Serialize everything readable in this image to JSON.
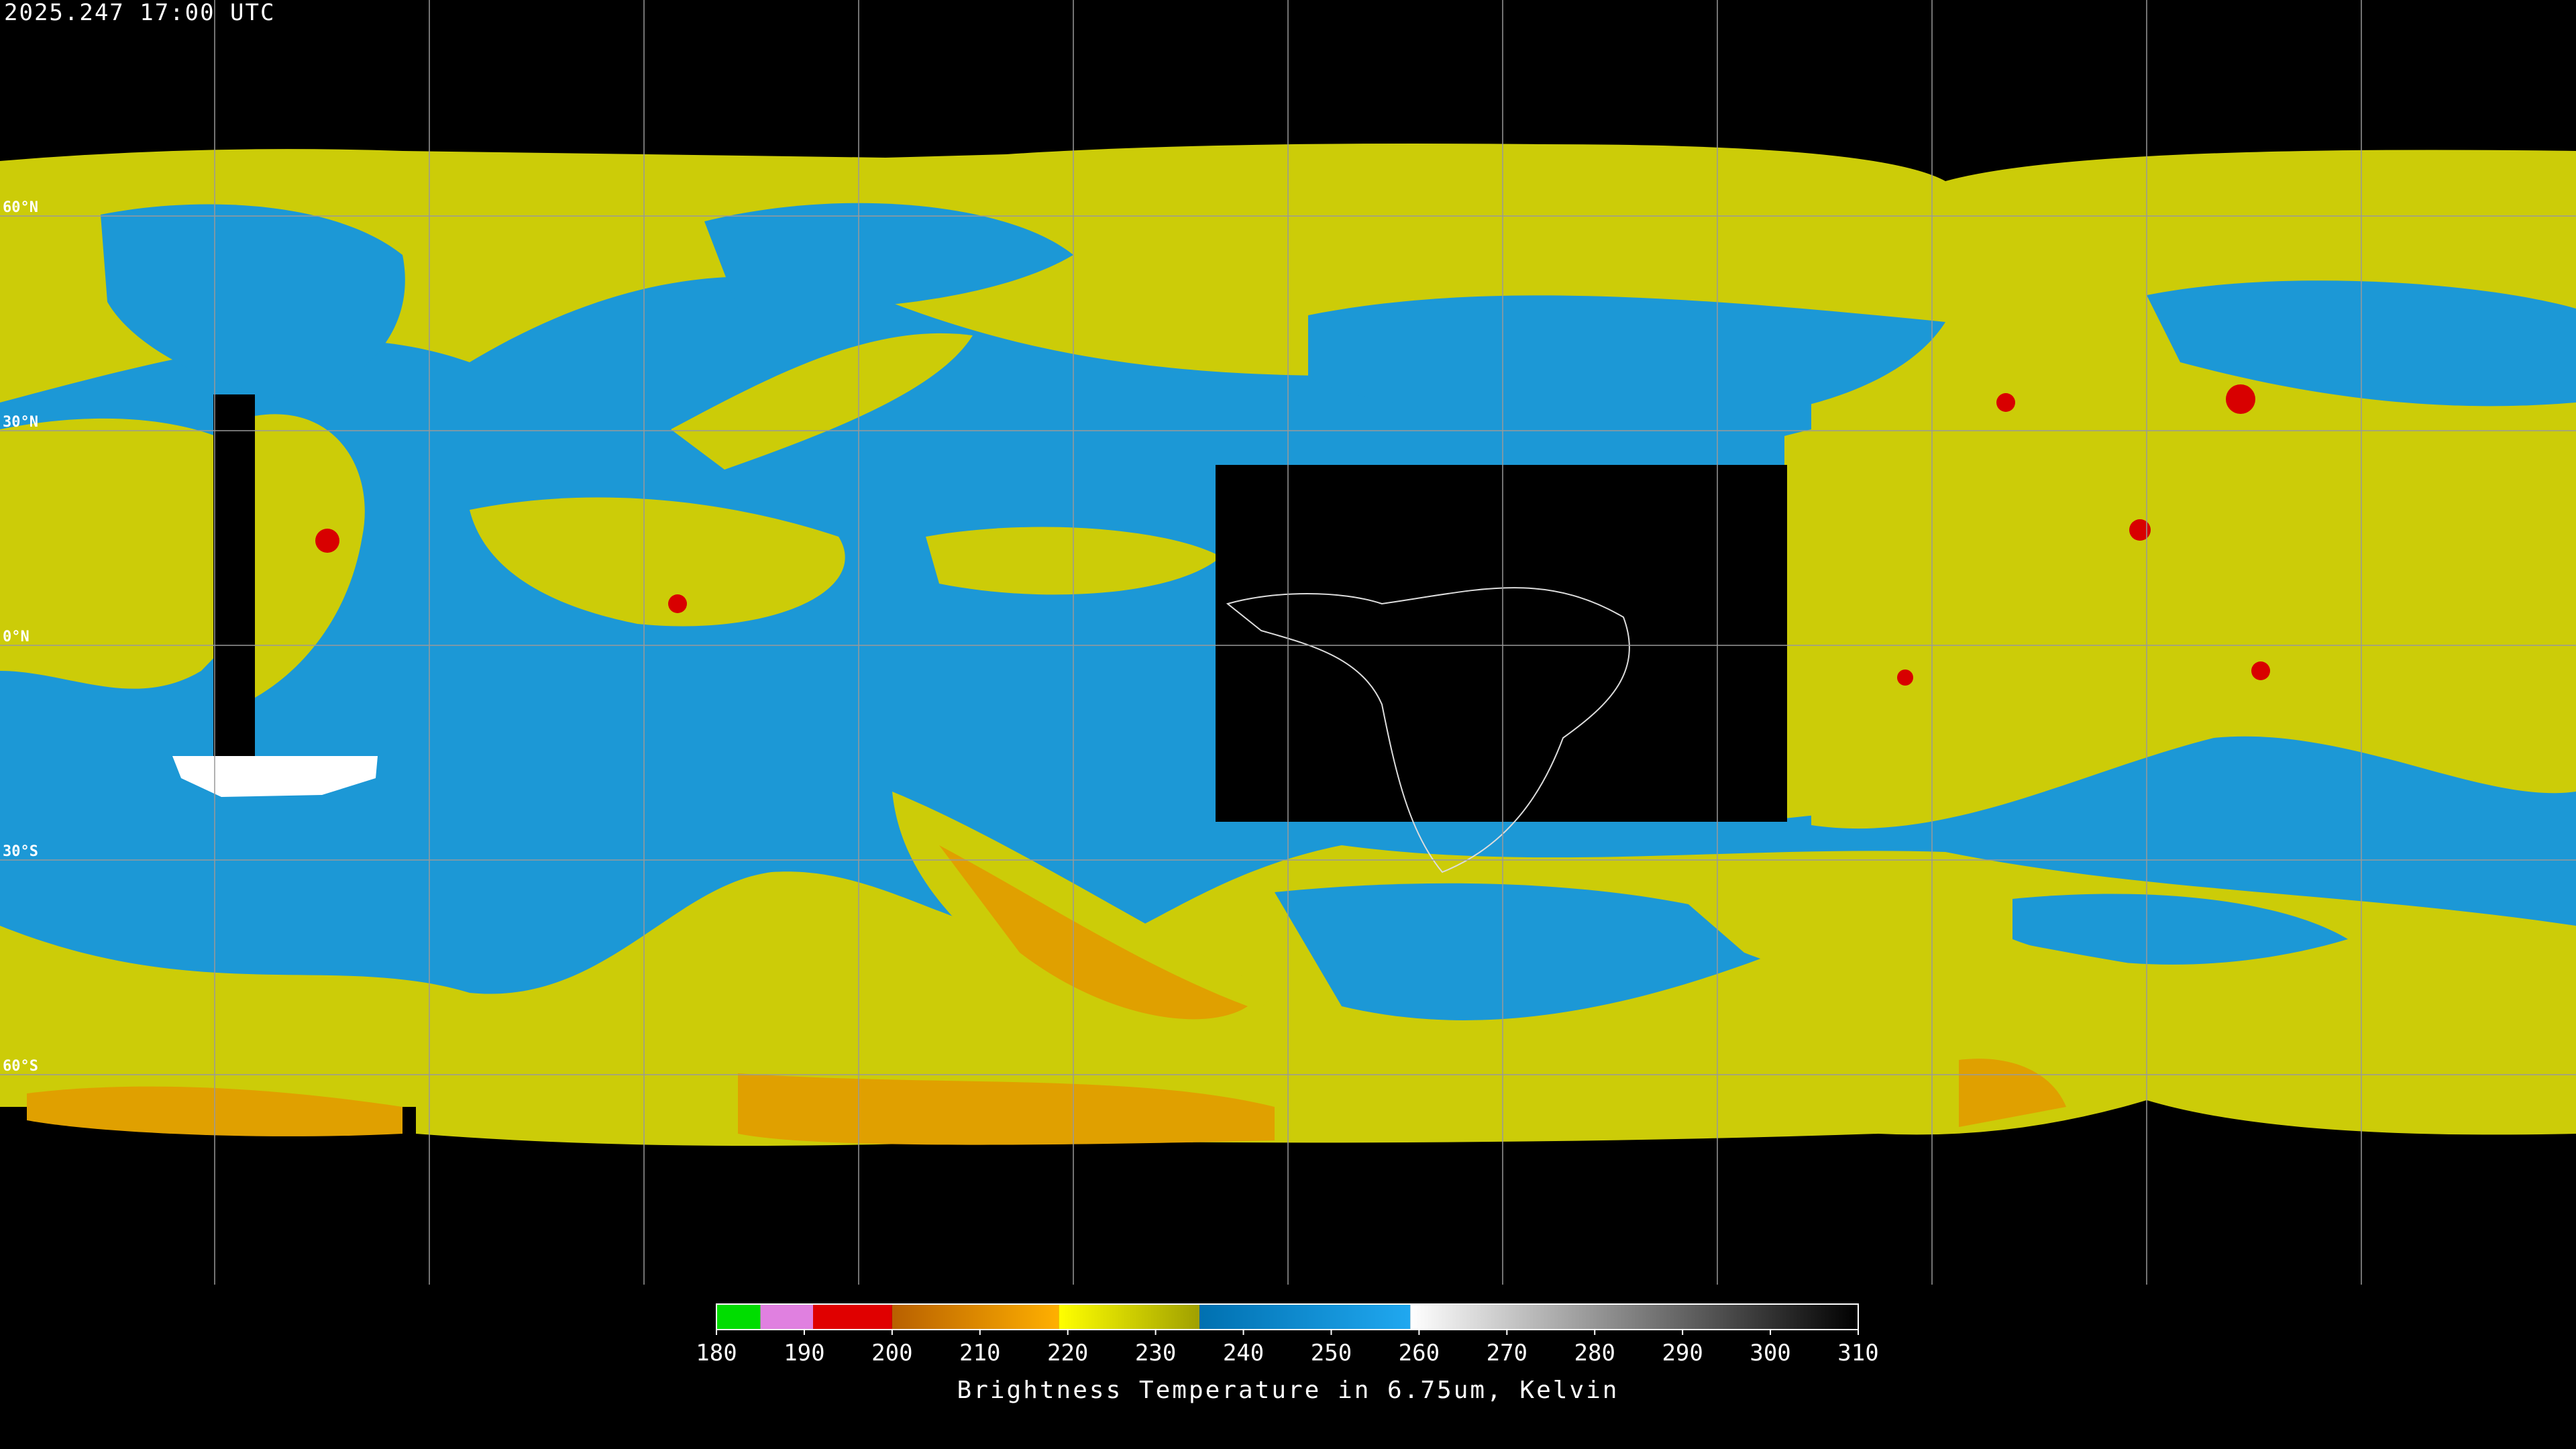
{
  "header": {
    "timestamp": "2025.247 17:00 UTC"
  },
  "map": {
    "lat_lines": [
      {
        "value": 60,
        "label": "60°N"
      },
      {
        "value": 30,
        "label": "30°N"
      },
      {
        "value": 0,
        "label": "0°N"
      },
      {
        "value": -30,
        "label": "30°S"
      },
      {
        "value": -60,
        "label": "60°S"
      }
    ]
  },
  "colorbar": {
    "title": "Brightness Temperature in 6.75um, Kelvin",
    "lim": [
      180,
      310
    ],
    "ticks": [
      180,
      190,
      200,
      210,
      220,
      230,
      240,
      250,
      260,
      270,
      280,
      290,
      300,
      310
    ],
    "segments": [
      {
        "from": 180,
        "to": 185,
        "colors": [
          "#00dd00",
          "#00dd00"
        ]
      },
      {
        "from": 185,
        "to": 191,
        "colors": [
          "#e080e0",
          "#e080e0"
        ]
      },
      {
        "from": 191,
        "to": 200,
        "colors": [
          "#e00000",
          "#e00000"
        ]
      },
      {
        "from": 200,
        "to": 219,
        "colors": [
          "#b86000",
          "#ffb000"
        ]
      },
      {
        "from": 219,
        "to": 235,
        "colors": [
          "#ffff00",
          "#a0a000"
        ]
      },
      {
        "from": 235,
        "to": 259,
        "colors": [
          "#0070b0",
          "#20a8f0"
        ]
      },
      {
        "from": 259,
        "to": 310,
        "colors": [
          "#ffffff",
          "#000000"
        ]
      }
    ]
  }
}
